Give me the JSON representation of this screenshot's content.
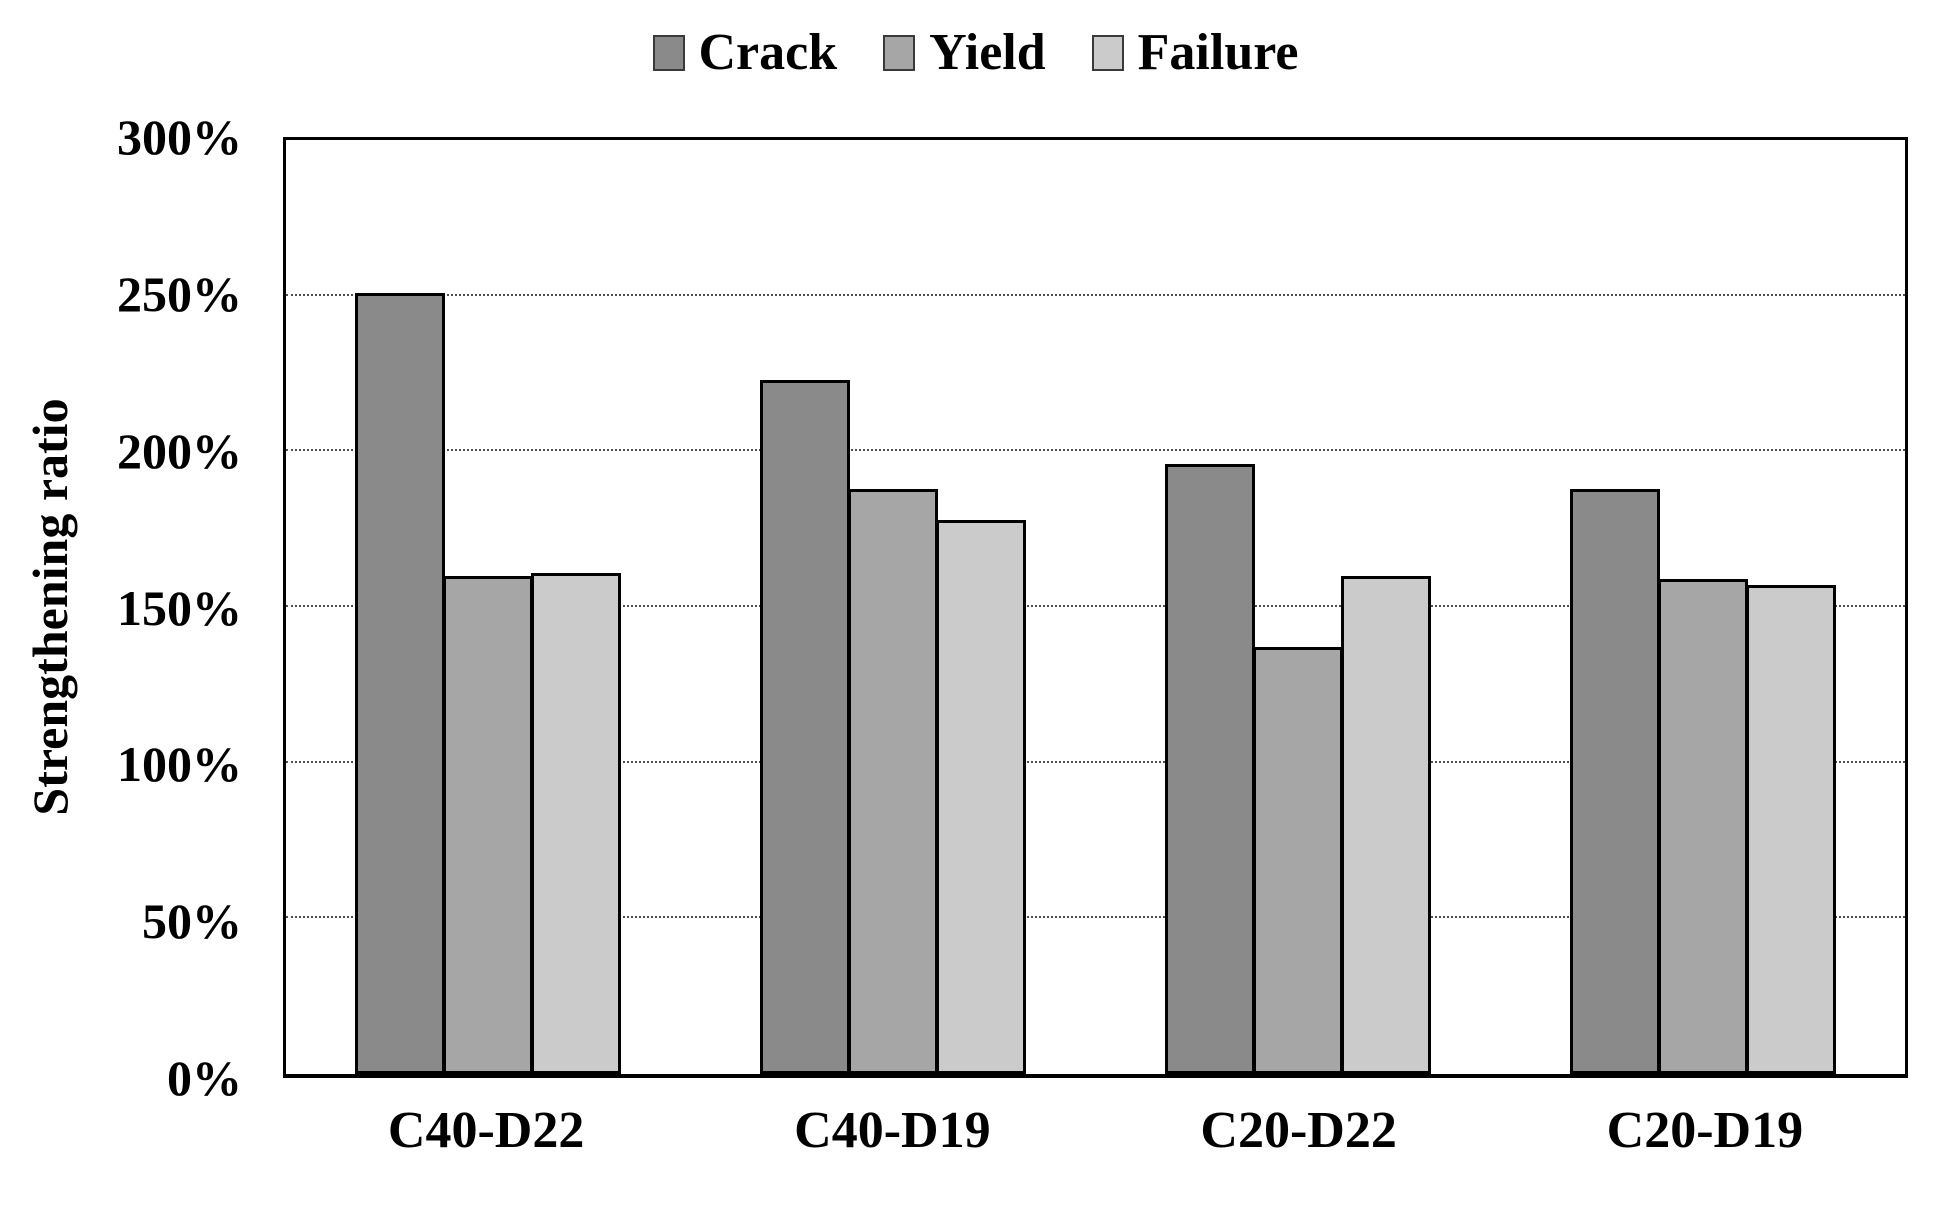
{
  "chart_data": {
    "type": "bar",
    "title": "",
    "categories": [
      "C40-D22",
      "C40-D19",
      "C20-D22",
      "C20-D19"
    ],
    "series": [
      {
        "name": "Crack",
        "color": "#8a8a8a",
        "values": [
          251,
          223,
          196,
          188
        ]
      },
      {
        "name": "Yield",
        "color": "#a6a6a6",
        "values": [
          160,
          188,
          137,
          159
        ]
      },
      {
        "name": "Failure",
        "color": "#cbcbcb",
        "values": [
          161,
          178,
          160,
          157
        ]
      }
    ],
    "xlabel": "",
    "ylabel": "Strengthening ratio",
    "ylim": [
      0,
      300
    ],
    "ytick_step": 50,
    "yticks": [
      "0%",
      "50%",
      "100%",
      "150%",
      "200%",
      "250%",
      "300%"
    ],
    "grid": "horizontal-dotted",
    "legend_position": "top-center",
    "bar_border_color": "#000000",
    "gridline_color": "#4f4f4f",
    "background_color": "#ffffff"
  }
}
